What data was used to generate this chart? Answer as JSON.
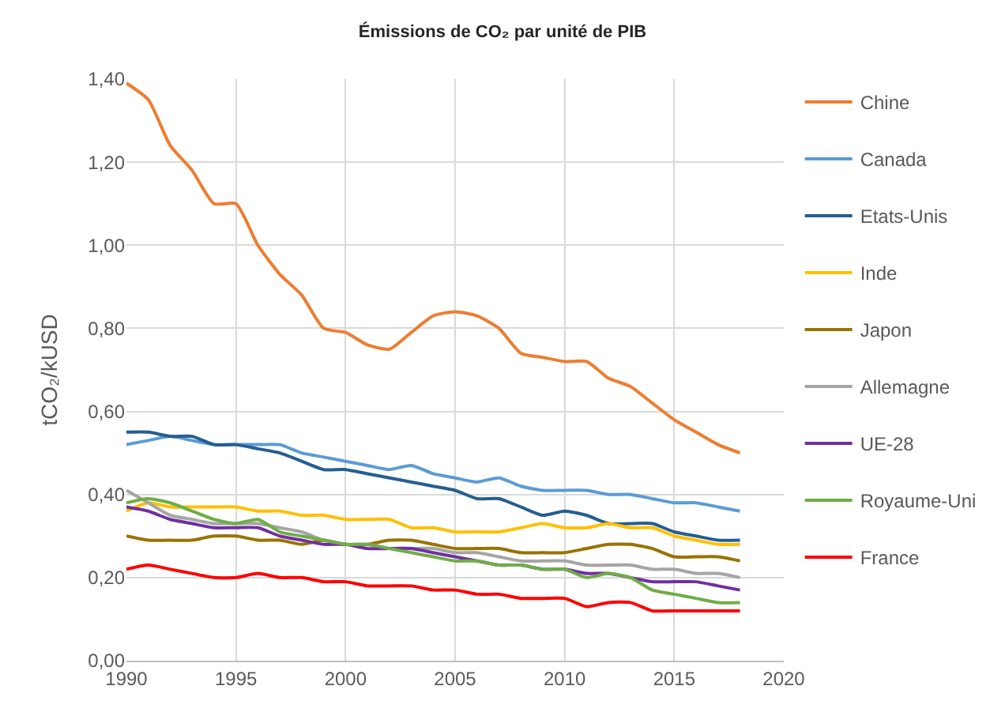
{
  "chart_data": {
    "type": "line",
    "title": "Émissions de CO₂ par unité de PIB",
    "ylabel": "tCO₂/kUSD",
    "x": [
      1990,
      1991,
      1992,
      1993,
      1994,
      1995,
      1996,
      1997,
      1998,
      1999,
      2000,
      2001,
      2002,
      2003,
      2004,
      2005,
      2006,
      2007,
      2008,
      2009,
      2010,
      2011,
      2012,
      2013,
      2014,
      2015,
      2016,
      2017,
      2018
    ],
    "series": [
      {
        "name": "Chine",
        "color": "#ed7d31",
        "values": [
          1.39,
          1.35,
          1.24,
          1.18,
          1.1,
          1.1,
          1.0,
          0.93,
          0.88,
          0.8,
          0.79,
          0.76,
          0.75,
          0.79,
          0.83,
          0.84,
          0.83,
          0.8,
          0.74,
          0.73,
          0.72,
          0.72,
          0.68,
          0.66,
          0.62,
          0.58,
          0.55,
          0.52,
          0.5
        ]
      },
      {
        "name": "Canada",
        "color": "#5b9bd5",
        "values": [
          0.52,
          0.53,
          0.54,
          0.53,
          0.52,
          0.52,
          0.52,
          0.52,
          0.5,
          0.49,
          0.48,
          0.47,
          0.46,
          0.47,
          0.45,
          0.44,
          0.43,
          0.44,
          0.42,
          0.41,
          0.41,
          0.41,
          0.4,
          0.4,
          0.39,
          0.38,
          0.38,
          0.37,
          0.36
        ]
      },
      {
        "name": "Etats-Unis",
        "color": "#255e91",
        "values": [
          0.55,
          0.55,
          0.54,
          0.54,
          0.52,
          0.52,
          0.51,
          0.5,
          0.48,
          0.46,
          0.46,
          0.45,
          0.44,
          0.43,
          0.42,
          0.41,
          0.39,
          0.39,
          0.37,
          0.35,
          0.36,
          0.35,
          0.33,
          0.33,
          0.33,
          0.31,
          0.3,
          0.29,
          0.29
        ]
      },
      {
        "name": "Inde",
        "color": "#ffc000",
        "values": [
          0.36,
          0.38,
          0.37,
          0.37,
          0.37,
          0.37,
          0.36,
          0.36,
          0.35,
          0.35,
          0.34,
          0.34,
          0.34,
          0.32,
          0.32,
          0.31,
          0.31,
          0.31,
          0.32,
          0.33,
          0.32,
          0.32,
          0.33,
          0.32,
          0.32,
          0.3,
          0.29,
          0.28,
          0.28
        ]
      },
      {
        "name": "Japon",
        "color": "#997300",
        "values": [
          0.3,
          0.29,
          0.29,
          0.29,
          0.3,
          0.3,
          0.29,
          0.29,
          0.28,
          0.29,
          0.28,
          0.28,
          0.29,
          0.29,
          0.28,
          0.27,
          0.27,
          0.27,
          0.26,
          0.26,
          0.26,
          0.27,
          0.28,
          0.28,
          0.27,
          0.25,
          0.25,
          0.25,
          0.24
        ]
      },
      {
        "name": "Allemagne",
        "color": "#a5a5a5",
        "values": [
          0.41,
          0.38,
          0.35,
          0.34,
          0.33,
          0.33,
          0.33,
          0.32,
          0.31,
          0.29,
          0.28,
          0.28,
          0.27,
          0.27,
          0.27,
          0.26,
          0.26,
          0.25,
          0.24,
          0.24,
          0.24,
          0.23,
          0.23,
          0.23,
          0.22,
          0.22,
          0.21,
          0.21,
          0.2
        ]
      },
      {
        "name": "UE-28",
        "color": "#7030a0",
        "values": [
          0.37,
          0.36,
          0.34,
          0.33,
          0.32,
          0.32,
          0.32,
          0.3,
          0.29,
          0.28,
          0.28,
          0.27,
          0.27,
          0.27,
          0.26,
          0.25,
          0.24,
          0.23,
          0.23,
          0.22,
          0.22,
          0.21,
          0.21,
          0.2,
          0.19,
          0.19,
          0.19,
          0.18,
          0.17
        ]
      },
      {
        "name": "Royaume-Uni",
        "color": "#70ad47",
        "values": [
          0.38,
          0.39,
          0.38,
          0.36,
          0.34,
          0.33,
          0.34,
          0.31,
          0.3,
          0.29,
          0.28,
          0.28,
          0.27,
          0.26,
          0.25,
          0.24,
          0.24,
          0.23,
          0.23,
          0.22,
          0.22,
          0.2,
          0.21,
          0.2,
          0.17,
          0.16,
          0.15,
          0.14,
          0.14
        ]
      },
      {
        "name": "France",
        "color": "#ff0000",
        "values": [
          0.22,
          0.23,
          0.22,
          0.21,
          0.2,
          0.2,
          0.21,
          0.2,
          0.2,
          0.19,
          0.19,
          0.18,
          0.18,
          0.18,
          0.17,
          0.17,
          0.16,
          0.16,
          0.15,
          0.15,
          0.15,
          0.13,
          0.14,
          0.14,
          0.12,
          0.12,
          0.12,
          0.12,
          0.12
        ]
      }
    ],
    "xlim": [
      1990,
      2020
    ],
    "xticks": [
      1990,
      1995,
      2000,
      2005,
      2010,
      2015,
      2020
    ],
    "ylim": [
      0,
      1.4
    ],
    "yticks": [
      {
        "value": 0,
        "label": "0,00"
      },
      {
        "value": 0.2,
        "label": "0,20"
      },
      {
        "value": 0.4,
        "label": "0,40"
      },
      {
        "value": 0.6,
        "label": "0,60"
      },
      {
        "value": 0.8,
        "label": "0,80"
      },
      {
        "value": 1.0,
        "label": "1,00"
      },
      {
        "value": 1.2,
        "label": "1,20"
      },
      {
        "value": 1.4,
        "label": "1,40"
      }
    ],
    "grid": true,
    "legend": "right",
    "marker": "none",
    "line_style": "solid"
  }
}
